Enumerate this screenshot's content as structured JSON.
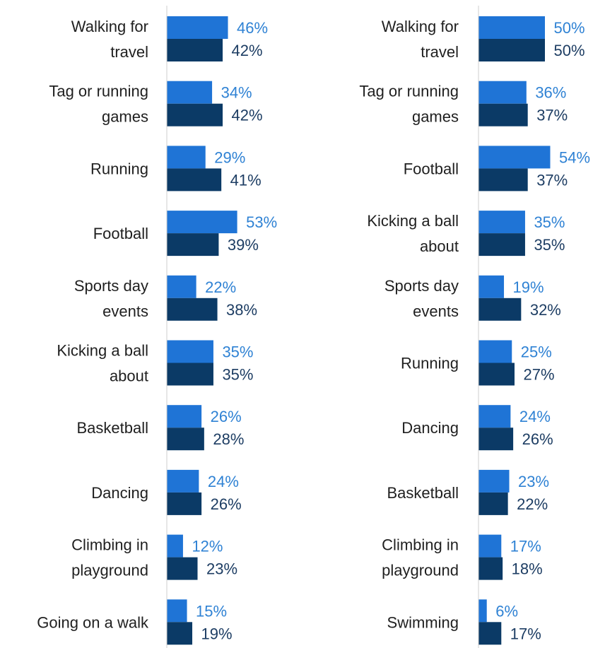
{
  "chart_data": [
    {
      "type": "bar",
      "orientation": "horizontal",
      "categories": [
        [
          "Walking for",
          "travel"
        ],
        [
          "Tag or running",
          "games"
        ],
        [
          "Running"
        ],
        [
          "Football"
        ],
        [
          "Sports day",
          "events"
        ],
        [
          "Kicking a ball",
          "about"
        ],
        [
          "Basketball"
        ],
        [
          "Dancing"
        ],
        [
          "Climbing in",
          "playground"
        ],
        [
          "Going on a walk"
        ]
      ],
      "series": [
        {
          "values": [
            46,
            34,
            29,
            53,
            22,
            35,
            26,
            24,
            12,
            15
          ],
          "labels": [
            "46%",
            "34%",
            "29%",
            "53%",
            "22%",
            "35%",
            "26%",
            "24%",
            "12%",
            "15%"
          ]
        },
        {
          "values": [
            42,
            42,
            41,
            39,
            38,
            35,
            28,
            26,
            23,
            19
          ],
          "labels": [
            "42%",
            "42%",
            "41%",
            "39%",
            "38%",
            "35%",
            "28%",
            "26%",
            "23%",
            "19%"
          ]
        }
      ],
      "unit": "%",
      "xlim": [
        0,
        100
      ],
      "grid": false,
      "legend": "none"
    },
    {
      "type": "bar",
      "orientation": "horizontal",
      "categories": [
        [
          "Walking for",
          "travel"
        ],
        [
          "Tag or running",
          "games"
        ],
        [
          "Football"
        ],
        [
          "Kicking a ball",
          "about"
        ],
        [
          "Sports day",
          "events"
        ],
        [
          "Running"
        ],
        [
          "Dancing"
        ],
        [
          "Basketball"
        ],
        [
          "Climbing in",
          "playground"
        ],
        [
          "Swimming"
        ]
      ],
      "series": [
        {
          "values": [
            50,
            36,
            54,
            35,
            19,
            25,
            24,
            23,
            17,
            6
          ],
          "labels": [
            "50%",
            "36%",
            "54%",
            "35%",
            "19%",
            "25%",
            "24%",
            "23%",
            "17%",
            "6%"
          ]
        },
        {
          "values": [
            50,
            37,
            37,
            35,
            32,
            27,
            26,
            22,
            18,
            17
          ],
          "labels": [
            "50%",
            "37%",
            "37%",
            "35%",
            "32%",
            "27%",
            "26%",
            "22%",
            "18%",
            "17%"
          ]
        }
      ],
      "unit": "%",
      "xlim": [
        0,
        100
      ],
      "grid": false,
      "legend": "none"
    }
  ],
  "colors": {
    "series1_bar": "#1f74d6",
    "series1_label": "#2f82d4",
    "series2_bar": "#0b3a66",
    "series2_label": "#1d3d63",
    "axis": "#cfcfcf"
  }
}
